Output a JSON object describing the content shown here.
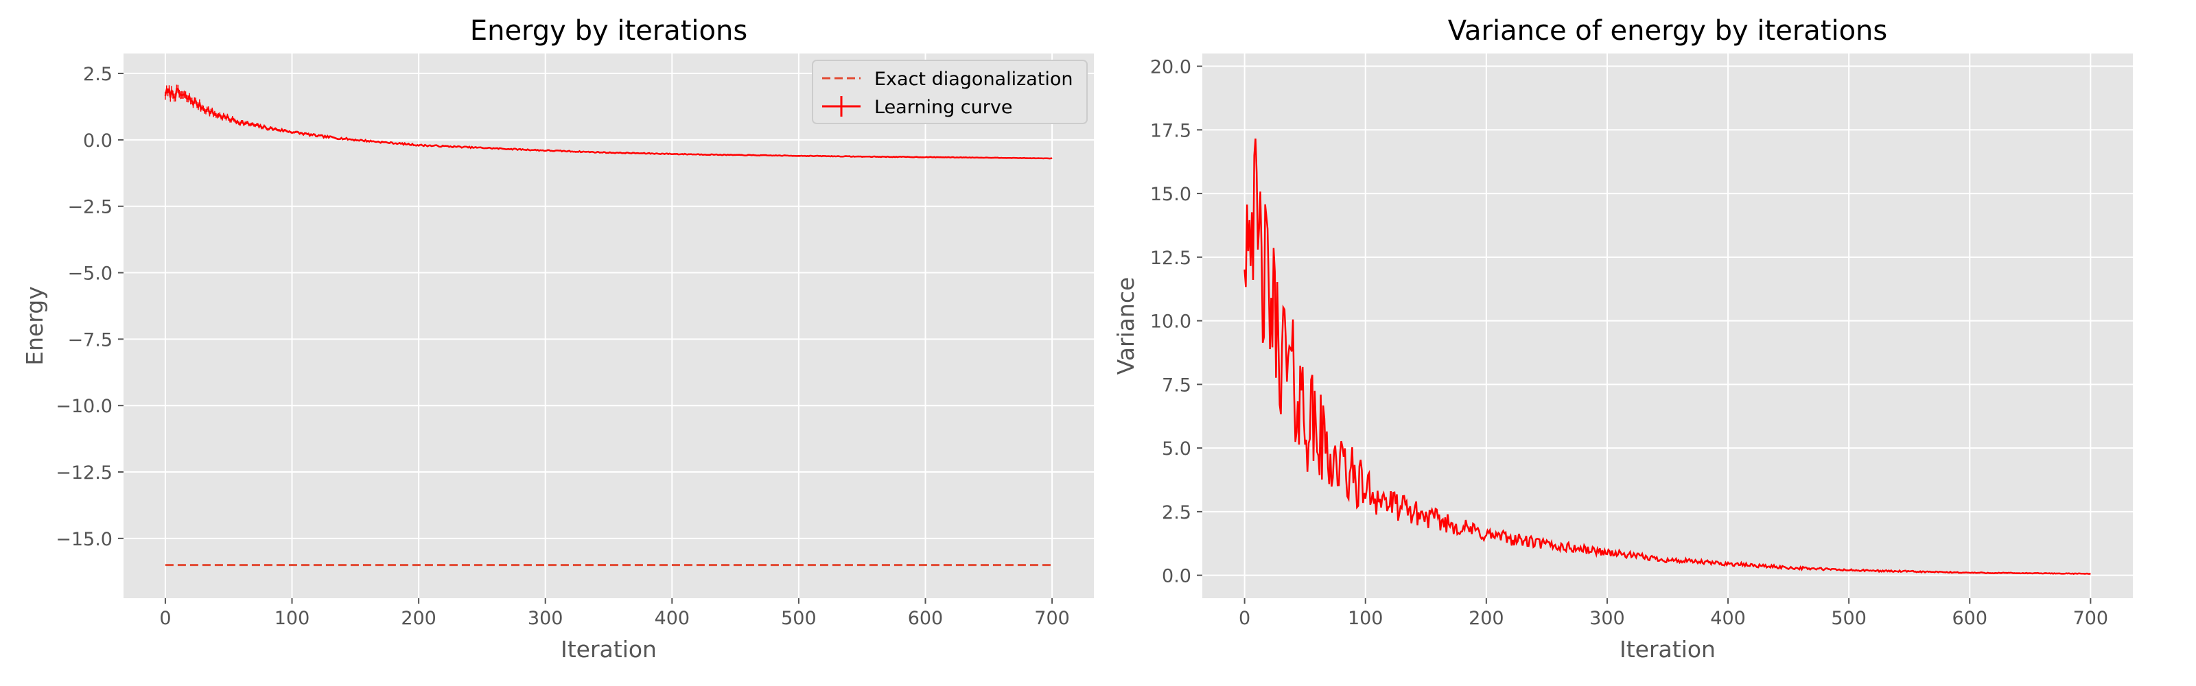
{
  "chart_data": [
    {
      "type": "line",
      "title": "Energy by iterations",
      "xlabel": "Iteration",
      "ylabel": "Energy",
      "xlim": [
        -33,
        733
      ],
      "ylim": [
        -17.25,
        3.25
      ],
      "xticks": [
        0,
        100,
        200,
        300,
        400,
        500,
        600,
        700
      ],
      "yticks": [
        2.5,
        0.0,
        -2.5,
        -5.0,
        -7.5,
        -10.0,
        -12.5,
        -15.0
      ],
      "xtick_labels": [
        "0",
        "100",
        "200",
        "300",
        "400",
        "500",
        "600",
        "700"
      ],
      "ytick_labels": [
        "2.5",
        "0.0",
        "−2.5",
        "−5.0",
        "−7.5",
        "−10.0",
        "−12.5",
        "−15.0"
      ],
      "grid": true,
      "legend": "top-right",
      "series": [
        {
          "name": "Exact diagonalization",
          "style": "dashed",
          "color": "#E24A33",
          "x": [
            0,
            700
          ],
          "y": [
            -16.0,
            -16.0
          ]
        },
        {
          "name": "Learning curve",
          "style": "solid-errorbar",
          "color": "#FF0000",
          "x": [
            0,
            10,
            20,
            30,
            40,
            50,
            60,
            80,
            100,
            120,
            150,
            175,
            200,
            250,
            300,
            350,
            400,
            450,
            500,
            550,
            600,
            650,
            700
          ],
          "y": [
            1.75,
            1.75,
            1.5,
            1.2,
            0.95,
            0.8,
            0.65,
            0.45,
            0.3,
            0.15,
            0.0,
            -0.1,
            -0.2,
            -0.3,
            -0.4,
            -0.48,
            -0.53,
            -0.57,
            -0.6,
            -0.63,
            -0.65,
            -0.67,
            -0.7
          ],
          "error": [
            0.3,
            0.3,
            0.25,
            0.2,
            0.18,
            0.15,
            0.13,
            0.1,
            0.08,
            0.07,
            0.06,
            0.05,
            0.05,
            0.04,
            0.04,
            0.03,
            0.03,
            0.02,
            0.02,
            0.02,
            0.02,
            0.01,
            0.01
          ]
        }
      ]
    },
    {
      "type": "line",
      "title": "Variance of energy by iterations",
      "xlabel": "Iteration",
      "ylabel": "Variance",
      "xlim": [
        -35,
        735
      ],
      "ylim": [
        -0.9,
        20.5
      ],
      "xticks": [
        0,
        100,
        200,
        300,
        400,
        500,
        600,
        700
      ],
      "yticks": [
        0.0,
        2.5,
        5.0,
        7.5,
        10.0,
        12.5,
        15.0,
        17.5,
        20.0
      ],
      "xtick_labels": [
        "0",
        "100",
        "200",
        "300",
        "400",
        "500",
        "600",
        "700"
      ],
      "ytick_labels": [
        "0.0",
        "2.5",
        "5.0",
        "7.5",
        "10.0",
        "12.5",
        "15.0",
        "17.5",
        "20.0"
      ],
      "grid": true,
      "series": [
        {
          "style": "solid",
          "color": "#FF0000",
          "x": [
            0,
            5,
            10,
            15,
            20,
            25,
            30,
            40,
            50,
            60,
            70,
            80,
            90,
            100,
            120,
            150,
            200,
            250,
            300,
            350,
            400,
            450,
            500,
            550,
            600,
            650,
            700
          ],
          "y": [
            13.5,
            15.0,
            13.0,
            12.0,
            11.0,
            10.0,
            9.0,
            7.5,
            6.5,
            5.5,
            4.8,
            4.2,
            3.8,
            3.4,
            2.8,
            2.3,
            1.6,
            1.2,
            0.9,
            0.6,
            0.45,
            0.3,
            0.2,
            0.15,
            0.1,
            0.08,
            0.06
          ],
          "noise": [
            3.0,
            3.0,
            4.0,
            3.5,
            3.0,
            3.0,
            2.8,
            2.6,
            2.4,
            2.0,
            1.6,
            1.4,
            1.2,
            0.9,
            0.6,
            0.45,
            0.3,
            0.22,
            0.15,
            0.1,
            0.08,
            0.06,
            0.04,
            0.03,
            0.02,
            0.015,
            0.01
          ]
        }
      ]
    }
  ],
  "colors": {
    "plot_background": "#E5E5E5",
    "grid": "#FFFFFF",
    "learning_curve": "#FF0000",
    "exact": "#E24A33"
  }
}
